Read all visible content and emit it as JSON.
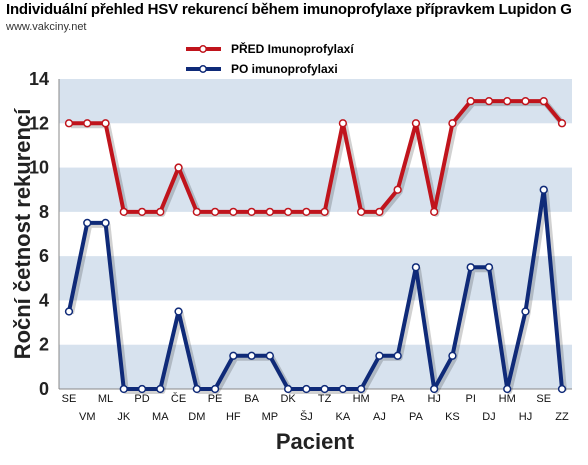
{
  "chart_data": {
    "type": "line",
    "title": "Individuální přehled HSV rekurencí během imunoprofylaxe přípravkem Lupidon G",
    "source": "www.vakciny.net",
    "xlabel": "Pacient",
    "ylabel": "Roční četnost rekurencí",
    "ylim": [
      0,
      14
    ],
    "yticks": [
      0,
      2,
      4,
      6,
      8,
      10,
      12,
      14
    ],
    "grid": "horizontal alternating bands",
    "legend_position": "top",
    "categories": [
      "SE",
      "VM",
      "ML",
      "JK",
      "PD",
      "MA",
      "ČE",
      "DM",
      "PE",
      "HF",
      "BA",
      "MP",
      "DK",
      "ŠJ",
      "TZ",
      "KA",
      "HM",
      "AJ",
      "PA",
      "PA",
      "HJ",
      "KS",
      "PI",
      "DJ",
      "HM",
      "HJ",
      "SE",
      "ZZ"
    ],
    "series": [
      {
        "name": "PŘED Imunoprofylaxí",
        "color": "#c0141c",
        "values": [
          12,
          12,
          12,
          8,
          8,
          8,
          10,
          8,
          8,
          8,
          8,
          8,
          8,
          8,
          8,
          12,
          8,
          8,
          9,
          12,
          8,
          12,
          13,
          13,
          13,
          13,
          13,
          12
        ]
      },
      {
        "name": "PO imunoprofylaxi",
        "color": "#0f2a78",
        "values": [
          3.5,
          7.5,
          7.5,
          0,
          0,
          0,
          3.5,
          0,
          0,
          1.5,
          1.5,
          1.5,
          0,
          0,
          0,
          0,
          0,
          1.5,
          1.5,
          5.5,
          0,
          1.5,
          5.5,
          5.5,
          0,
          3.5,
          9,
          0
        ]
      }
    ]
  }
}
